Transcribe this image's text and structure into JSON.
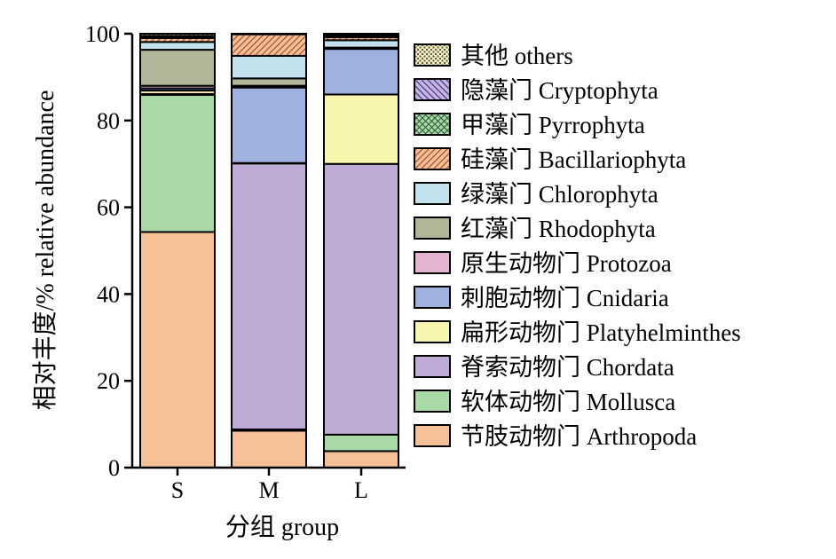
{
  "chart_data": {
    "type": "bar",
    "stacked": true,
    "categories": [
      "S",
      "M",
      "L"
    ],
    "xlabel": "分组 group",
    "ylabel": "相对丰度/% relative abundance",
    "ylim": [
      0,
      100
    ],
    "yticks": [
      "0",
      "20",
      "40",
      "60",
      "80",
      "100"
    ],
    "legend_position": "right",
    "series": [
      {
        "name": "节肢动物门 Arthropoda",
        "color": "#f5c096",
        "pattern": "",
        "values": [
          54.3,
          8.5,
          3.8
        ]
      },
      {
        "name": "软体动物门 Mollusca",
        "color": "#a8d9a6",
        "pattern": "",
        "values": [
          31.6,
          0.3,
          3.8
        ]
      },
      {
        "name": "脊索动物门 Chordata",
        "color": "#bfacd6",
        "pattern": "",
        "values": [
          0.2,
          61.3,
          62.4
        ]
      },
      {
        "name": "扁形动物门 Platyhelminthes",
        "color": "#f8f5ae",
        "pattern": "",
        "values": [
          0.8,
          0.1,
          16.0
        ]
      },
      {
        "name": "刺胞动物门 Cnidaria",
        "color": "#9fb1df",
        "pattern": "",
        "values": [
          0.5,
          17.4,
          10.5
        ]
      },
      {
        "name": "原生动物门 Protozoa",
        "color": "#e3b3d1",
        "pattern": "",
        "values": [
          0.6,
          0.4,
          0.1
        ]
      },
      {
        "name": "红藻门 Rhodophyta",
        "color": "#b0b698",
        "pattern": "",
        "values": [
          8.3,
          1.7,
          0.2
        ]
      },
      {
        "name": "绿藻门 Chlorophyta",
        "color": "#c2e3ee",
        "pattern": "",
        "values": [
          1.8,
          5.2,
          1.7
        ]
      },
      {
        "name": "硅藻门 Bacillariophyta",
        "color": "#f7bf99",
        "pattern": "diag-right",
        "values": [
          0.9,
          5.0,
          0.7
        ]
      },
      {
        "name": "甲藻门 Pyrrophyta",
        "color": "#a9d8ad",
        "pattern": "cross",
        "values": [
          0.3,
          0.05,
          0.3
        ]
      },
      {
        "name": "隐藻门 Cryptophyta",
        "color": "#c5b4e6",
        "pattern": "diag-left",
        "values": [
          0.2,
          0.05,
          0.2
        ]
      },
      {
        "name": "其他 others",
        "color": "#f6f1b9",
        "pattern": "dots",
        "values": [
          0.5,
          0.0,
          0.3
        ]
      }
    ]
  }
}
